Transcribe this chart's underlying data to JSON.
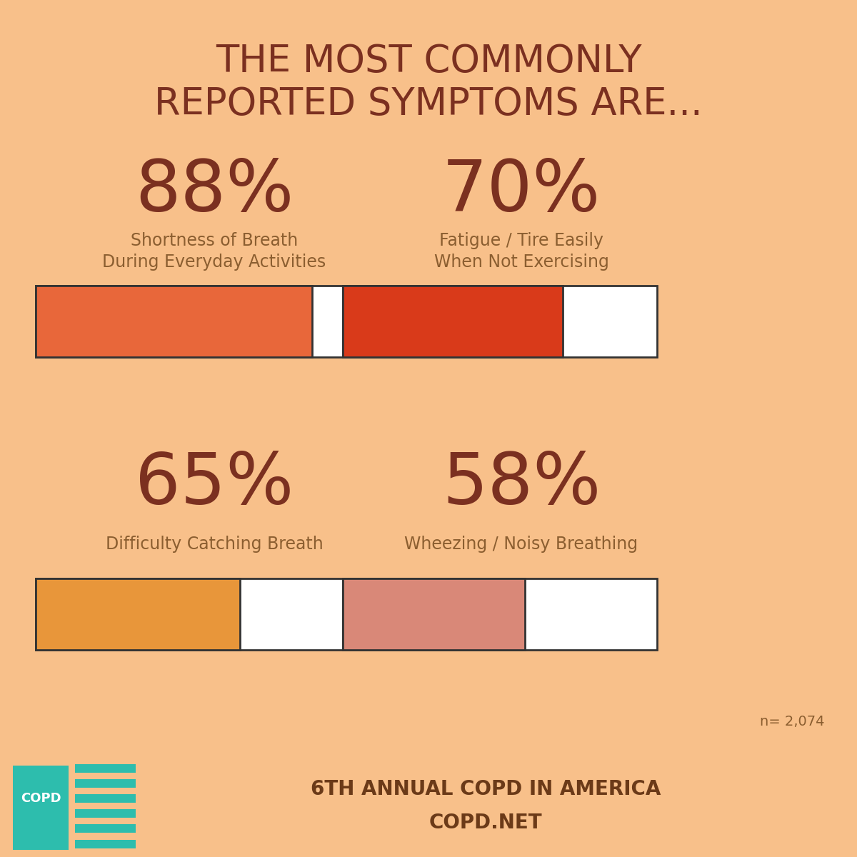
{
  "title_line1": "THE MOST COMMONLY",
  "title_line2": "REPORTED SYMPTOMS ARE...",
  "background_color": "#F8C08A",
  "main_bg": "#F5B878",
  "title_color": "#7B3020",
  "label_color": "#8B5E30",
  "bar_bg_color": "#FFFFFF",
  "footer_bg": "#F5A855",
  "teal_color": "#2DBDAD",
  "footer_text_color": "#6B3A18",
  "symptoms": [
    {
      "percent": "88%",
      "label_line1": "Shortness of Breath",
      "label_line2": "During Everyday Activities",
      "value": 88,
      "bar_color": "#E8673A",
      "col": 0,
      "row": 0
    },
    {
      "percent": "70%",
      "label_line1": "Fatigue / Tire Easily",
      "label_line2": "When Not Exercising",
      "value": 70,
      "bar_color": "#D93A1A",
      "col": 1,
      "row": 0
    },
    {
      "percent": "65%",
      "label_line1": "Difficulty Catching Breath",
      "label_line2": "",
      "value": 65,
      "bar_color": "#E8963A",
      "col": 0,
      "row": 1
    },
    {
      "percent": "58%",
      "label_line1": "Wheezing / Noisy Breathing",
      "label_line2": "",
      "value": 58,
      "bar_color": "#D98878",
      "col": 1,
      "row": 1
    }
  ],
  "footnote": "n= 2,074",
  "footer_line1": "6TH ANNUAL COPD IN AMERICA",
  "footer_line2": "COPD.NET",
  "figsize": [
    12,
    12
  ],
  "dpi": 100
}
